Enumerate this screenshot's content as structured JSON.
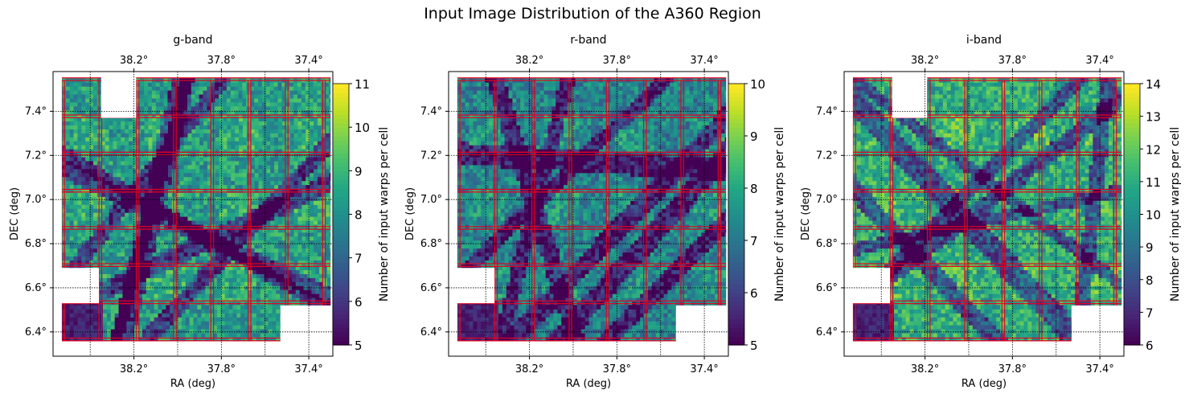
{
  "figure": {
    "title": "Input Image Distribution of the A360 Region"
  },
  "chart_data": [
    {
      "type": "heatmap",
      "title": "g-band",
      "xlabel": "RA (deg)",
      "ylabel": "DEC (deg)",
      "x_ticks": [
        "38.2°",
        "37.8°",
        "37.4°"
      ],
      "x_tick_values": [
        38.2,
        37.8,
        37.4
      ],
      "y_ticks": [
        "6.4°",
        "6.6°",
        "6.8°",
        "7.0°",
        "7.2°",
        "7.4°"
      ],
      "y_tick_values": [
        6.4,
        6.6,
        6.8,
        7.0,
        7.2,
        7.4
      ],
      "xlim": [
        38.57,
        37.29
      ],
      "ylim": [
        6.29,
        7.58
      ],
      "x_axis_inverted": true,
      "secondary_top_x_axis": true,
      "grid": true,
      "colormap": "viridis",
      "colorbar": {
        "label": "Number of input warps per cell",
        "min": 5,
        "max": 11,
        "ticks": [
          5,
          6,
          7,
          8,
          9,
          10,
          11
        ]
      },
      "overlay_grid_color": "#e8001c"
    },
    {
      "type": "heatmap",
      "title": "r-band",
      "xlabel": "RA (deg)",
      "ylabel": "DEC (deg)",
      "x_ticks": [
        "38.2°",
        "37.8°",
        "37.4°"
      ],
      "x_tick_values": [
        38.2,
        37.8,
        37.4
      ],
      "y_ticks": [
        "6.4°",
        "6.6°",
        "6.8°",
        "7.0°",
        "7.2°",
        "7.4°"
      ],
      "y_tick_values": [
        6.4,
        6.6,
        6.8,
        7.0,
        7.2,
        7.4
      ],
      "xlim": [
        38.57,
        37.29
      ],
      "ylim": [
        6.29,
        7.58
      ],
      "x_axis_inverted": true,
      "secondary_top_x_axis": true,
      "grid": true,
      "colormap": "viridis",
      "colorbar": {
        "label": "Number of input warps per cell",
        "min": 5,
        "max": 10,
        "ticks": [
          5,
          6,
          7,
          8,
          9,
          10
        ]
      },
      "overlay_grid_color": "#e8001c"
    },
    {
      "type": "heatmap",
      "title": "i-band",
      "xlabel": "RA (deg)",
      "ylabel": "DEC (deg)",
      "x_ticks": [
        "38.2°",
        "37.8°",
        "37.4°"
      ],
      "x_tick_values": [
        38.2,
        37.8,
        37.4
      ],
      "y_ticks": [
        "6.4°",
        "6.6°",
        "6.8°",
        "7.0°",
        "7.2°",
        "7.4°"
      ],
      "y_tick_values": [
        6.4,
        6.6,
        6.8,
        7.0,
        7.2,
        7.4
      ],
      "xlim": [
        38.57,
        37.29
      ],
      "ylim": [
        6.29,
        7.58
      ],
      "x_axis_inverted": true,
      "secondary_top_x_axis": true,
      "grid": true,
      "colormap": "viridis",
      "colorbar": {
        "label": "Number of input warps per cell",
        "min": 6,
        "max": 14,
        "ticks": [
          6,
          7,
          8,
          9,
          10,
          11,
          12,
          13,
          14
        ]
      },
      "overlay_grid_color": "#e8001c"
    }
  ]
}
